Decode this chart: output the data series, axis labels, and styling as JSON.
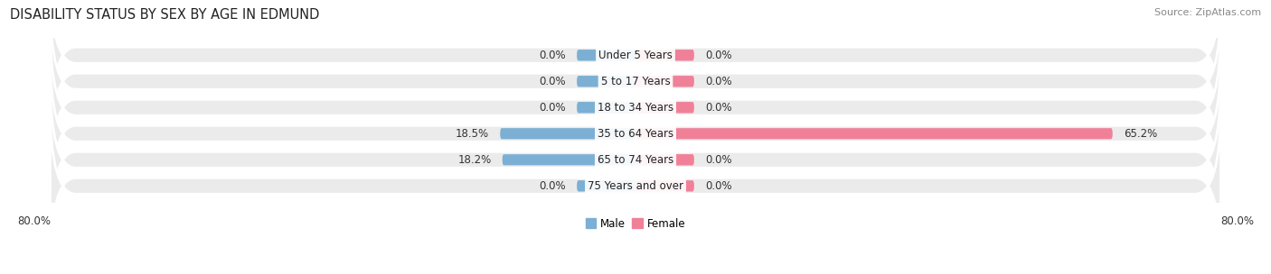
{
  "title": "DISABILITY STATUS BY SEX BY AGE IN EDMUND",
  "source": "Source: ZipAtlas.com",
  "categories": [
    "Under 5 Years",
    "5 to 17 Years",
    "18 to 34 Years",
    "35 to 64 Years",
    "65 to 74 Years",
    "75 Years and over"
  ],
  "male_values": [
    0.0,
    0.0,
    0.0,
    18.5,
    18.2,
    0.0
  ],
  "female_values": [
    0.0,
    0.0,
    0.0,
    65.2,
    0.0,
    0.0
  ],
  "male_color": "#7bafd4",
  "female_color": "#f08098",
  "row_bg_color": "#ebebeb",
  "max_value": 80.0,
  "stub_value": 8.0,
  "legend_male": "Male",
  "legend_female": "Female",
  "title_fontsize": 10.5,
  "source_fontsize": 8,
  "label_fontsize": 8.5,
  "category_fontsize": 8.5
}
